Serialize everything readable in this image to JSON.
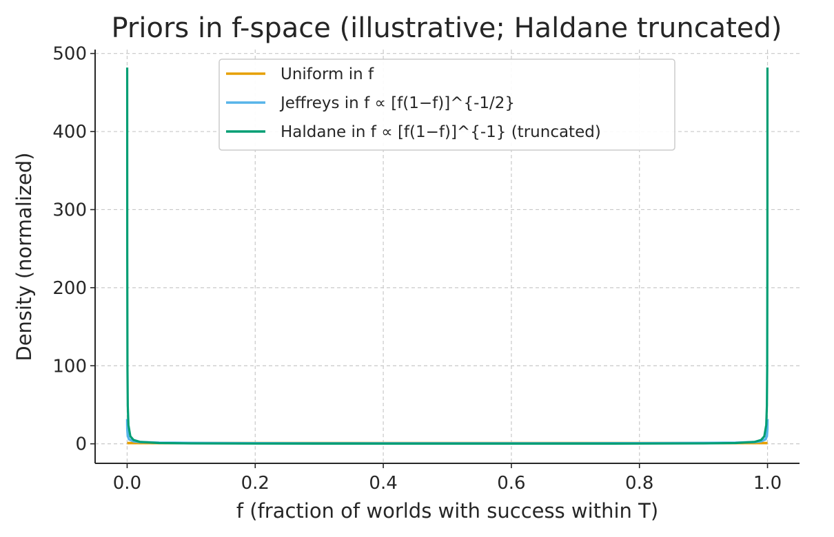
{
  "chart_data": {
    "type": "line",
    "title": "Priors in f-space (illustrative; Haldane truncated)",
    "xlabel": "f (fraction of worlds with success within T)",
    "ylabel": "Density (normalized)",
    "xlim": [
      -0.05,
      1.05
    ],
    "ylim": [
      -25,
      505
    ],
    "xticks": [
      0.0,
      0.2,
      0.4,
      0.6,
      0.8,
      1.0
    ],
    "xtick_labels": [
      "0.0",
      "0.2",
      "0.4",
      "0.6",
      "0.8",
      "1.0"
    ],
    "yticks": [
      0,
      100,
      200,
      300,
      400,
      500
    ],
    "ytick_labels": [
      "0",
      "100",
      "200",
      "300",
      "400",
      "500"
    ],
    "grid": true,
    "legend_position": "top-center",
    "series": [
      {
        "name": "Uniform in f",
        "color": "#E69F00",
        "x": [
          0.0001,
          0.5,
          0.9999
        ],
        "y": [
          1,
          1,
          1
        ]
      },
      {
        "name": "Jeffreys in f ∝ [f(1−f)]^{-1/2}",
        "color": "#56B4E9",
        "x": [
          0.0001,
          0.0003,
          0.001,
          0.003,
          0.01,
          0.02,
          0.05,
          0.1,
          0.2,
          0.3,
          0.4,
          0.5,
          0.6,
          0.7,
          0.8,
          0.9,
          0.95,
          0.98,
          0.99,
          0.997,
          0.999,
          0.9997,
          0.9999
        ],
        "y": [
          31.8,
          18.4,
          10.1,
          5.8,
          3.2,
          2.3,
          1.46,
          1.06,
          0.8,
          0.69,
          0.65,
          0.64,
          0.65,
          0.69,
          0.8,
          1.06,
          1.46,
          2.3,
          3.2,
          5.8,
          10.1,
          18.4,
          31.8
        ]
      },
      {
        "name": "Haldane in f ∝ [f(1−f)]^{-1} (truncated)",
        "color": "#009E73",
        "x": [
          0.0001,
          0.0002,
          0.0005,
          0.001,
          0.002,
          0.005,
          0.01,
          0.02,
          0.05,
          0.1,
          0.2,
          0.3,
          0.4,
          0.5,
          0.6,
          0.7,
          0.8,
          0.9,
          0.95,
          0.98,
          0.99,
          0.995,
          0.998,
          0.999,
          0.9995,
          0.9998,
          0.9999
        ],
        "y": [
          482,
          241,
          97,
          48.3,
          24.2,
          9.7,
          4.9,
          2.5,
          1.02,
          0.54,
          0.3,
          0.23,
          0.2,
          0.19,
          0.2,
          0.23,
          0.3,
          0.54,
          1.02,
          2.5,
          4.9,
          9.7,
          24.2,
          48.3,
          97,
          241,
          482
        ]
      }
    ]
  }
}
